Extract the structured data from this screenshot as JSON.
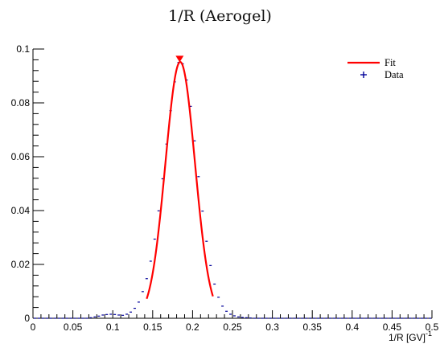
{
  "chart_data": {
    "type": "line",
    "title": "1/R (Aerogel)",
    "xlabel": "1/R [GV]",
    "xlabel_superscript": "-1",
    "ylabel": "",
    "xlim": [
      0,
      0.5
    ],
    "ylim": [
      0,
      0.1
    ],
    "xticks": [
      0,
      0.05,
      0.1,
      0.15,
      0.2,
      0.25,
      0.3,
      0.35,
      0.4,
      0.45,
      0.5
    ],
    "xtick_labels": [
      "0",
      "0.05",
      "0.1",
      "0.15",
      "0.2",
      "0.25",
      "0.3",
      "0.35",
      "0.4",
      "0.45",
      "0.5"
    ],
    "yticks": [
      0,
      0.02,
      0.04,
      0.06,
      0.08,
      0.1
    ],
    "ytick_labels": [
      "0",
      "0.02",
      "0.04",
      "0.06",
      "0.08",
      "0.1"
    ],
    "grid": false,
    "legend_position": "top-right",
    "bin_width": 0.005,
    "series": [
      {
        "name": "Data",
        "kind": "histogram-markers",
        "color": "#000099",
        "x": [
          0.0025,
          0.0075,
          0.0125,
          0.0175,
          0.0225,
          0.0275,
          0.0325,
          0.0375,
          0.0425,
          0.0475,
          0.0525,
          0.0575,
          0.0625,
          0.0675,
          0.0725,
          0.0775,
          0.0825,
          0.0875,
          0.0925,
          0.0975,
          0.1025,
          0.1075,
          0.1125,
          0.1175,
          0.1225,
          0.1275,
          0.1325,
          0.1375,
          0.1425,
          0.1475,
          0.1525,
          0.1575,
          0.1625,
          0.1675,
          0.1725,
          0.1775,
          0.1825,
          0.1875,
          0.1925,
          0.1975,
          0.2025,
          0.2075,
          0.2125,
          0.2175,
          0.2225,
          0.2275,
          0.2325,
          0.2375,
          0.2425,
          0.2475,
          0.2525,
          0.2575,
          0.2625,
          0.2675,
          0.2725,
          0.2775,
          0.2825,
          0.2875,
          0.2925,
          0.2975,
          0.3025,
          0.3075,
          0.3125,
          0.3175,
          0.3225,
          0.3275,
          0.3325,
          0.3375,
          0.3425,
          0.3475,
          0.3525,
          0.3575,
          0.3625,
          0.3675,
          0.3725,
          0.3775,
          0.3825,
          0.3875,
          0.3925,
          0.3975,
          0.4025,
          0.4075,
          0.4125,
          0.4175,
          0.4225,
          0.4275,
          0.4325,
          0.4375,
          0.4425,
          0.4475,
          0.4525,
          0.4575,
          0.4625,
          0.4675,
          0.4725,
          0.4775,
          0.4825,
          0.4875,
          0.4925,
          0.4975
        ],
        "values": [
          0,
          0,
          0,
          0,
          0,
          0,
          0,
          0,
          0,
          0,
          0,
          0,
          0,
          0,
          0.0002,
          0.0005,
          0.0008,
          0.0012,
          0.0014,
          0.0015,
          0.0014,
          0.0012,
          0.0011,
          0.0015,
          0.0023,
          0.0037,
          0.006,
          0.0099,
          0.0147,
          0.0212,
          0.0294,
          0.0399,
          0.0518,
          0.0647,
          0.0771,
          0.0878,
          0.095,
          0.0945,
          0.0885,
          0.0787,
          0.0659,
          0.0526,
          0.0398,
          0.0286,
          0.0196,
          0.0127,
          0.0078,
          0.0045,
          0.0026,
          0.0015,
          0.0009,
          0.0005,
          0.0003,
          0.0002,
          0.0001,
          0,
          0,
          0,
          0,
          0,
          0,
          0,
          0,
          0,
          0,
          0,
          0,
          0,
          0,
          0,
          0,
          0,
          0,
          0,
          0,
          0,
          0,
          0,
          0,
          0,
          0,
          0,
          0,
          0,
          0,
          0,
          0,
          0,
          0,
          0,
          0,
          0,
          0,
          0,
          0,
          0,
          0,
          0,
          0,
          0
        ]
      },
      {
        "name": "Fit",
        "kind": "gaussian-curve",
        "color": "#ff0000",
        "amplitude": 0.0952,
        "mean": 0.1845,
        "sigma": 0.0185,
        "range": [
          0.1425,
          0.2255
        ]
      }
    ],
    "marker": {
      "type": "triangle-down",
      "x": 0.1838,
      "y": 0.0963,
      "color": "#ff0000"
    }
  }
}
